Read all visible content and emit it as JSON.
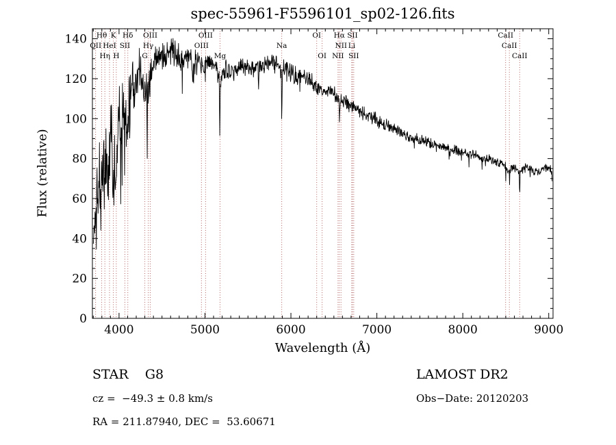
{
  "title": "spec-55961-F5596101_sp02-126.fits",
  "footer": {
    "class_label": "STAR    G8",
    "survey": "LAMOST DR2",
    "cz": "cz =  −49.3 ± 0.8 km/s",
    "obs_date": "Obs−Date: 20120203",
    "coords": "RA = 211.87940, DEC =  53.60671"
  },
  "chart_data": {
    "type": "line",
    "title": "spec-55961-F5596101_sp02-126.fits",
    "xlabel": "Wavelength (Å)",
    "ylabel": "Flux (relative)",
    "xlim": [
      3690,
      9050
    ],
    "ylim": [
      0,
      145
    ],
    "xticks": [
      4000,
      5000,
      6000,
      7000,
      8000,
      9000
    ],
    "yticks": [
      0,
      20,
      40,
      60,
      80,
      100,
      120,
      140
    ],
    "grid": false,
    "line_color": "#000000",
    "marker_color": "#b06060",
    "legend": "none",
    "envelope": [
      [
        3700,
        35
      ],
      [
        3712,
        58
      ],
      [
        3725,
        40
      ],
      [
        3740,
        68
      ],
      [
        3755,
        52
      ],
      [
        3770,
        75
      ],
      [
        3785,
        60
      ],
      [
        3800,
        72
      ],
      [
        3815,
        80
      ],
      [
        3835,
        68
      ],
      [
        3852,
        88
      ],
      [
        3870,
        75
      ],
      [
        3890,
        82
      ],
      [
        3905,
        95
      ],
      [
        3920,
        85
      ],
      [
        3934,
        60
      ],
      [
        3948,
        90
      ],
      [
        3968,
        64
      ],
      [
        3985,
        98
      ],
      [
        4000,
        106
      ],
      [
        4020,
        96
      ],
      [
        4045,
        108
      ],
      [
        4070,
        100
      ],
      [
        4102,
        98
      ],
      [
        4120,
        112
      ],
      [
        4150,
        118
      ],
      [
        4180,
        114
      ],
      [
        4210,
        122
      ],
      [
        4240,
        125
      ],
      [
        4270,
        117
      ],
      [
        4300,
        110
      ],
      [
        4322,
        118
      ],
      [
        4326,
        62
      ],
      [
        4332,
        116
      ],
      [
        4340,
        112
      ],
      [
        4363,
        120
      ],
      [
        4390,
        128
      ],
      [
        4430,
        131
      ],
      [
        4470,
        134
      ],
      [
        4510,
        133
      ],
      [
        4550,
        131
      ],
      [
        4590,
        136
      ],
      [
        4630,
        133
      ],
      [
        4670,
        132
      ],
      [
        4710,
        130
      ],
      [
        4750,
        128
      ],
      [
        4790,
        132
      ],
      [
        4830,
        129
      ],
      [
        4861,
        120
      ],
      [
        4890,
        129
      ],
      [
        4930,
        127
      ],
      [
        4970,
        128
      ],
      [
        5007,
        125
      ],
      [
        5040,
        127
      ],
      [
        5080,
        126
      ],
      [
        5120,
        127
      ],
      [
        5166,
        120
      ],
      [
        5172,
        88
      ],
      [
        5180,
        118
      ],
      [
        5220,
        124
      ],
      [
        5270,
        125
      ],
      [
        5320,
        124
      ],
      [
        5370,
        126
      ],
      [
        5420,
        125
      ],
      [
        5470,
        126
      ],
      [
        5520,
        125
      ],
      [
        5570,
        124
      ],
      [
        5620,
        125
      ],
      [
        5670,
        127
      ],
      [
        5720,
        128
      ],
      [
        5770,
        130
      ],
      [
        5820,
        127
      ],
      [
        5860,
        126
      ],
      [
        5888,
        125
      ],
      [
        5893,
        96
      ],
      [
        5900,
        124
      ],
      [
        5950,
        126
      ],
      [
        6000,
        123
      ],
      [
        6060,
        122
      ],
      [
        6120,
        121
      ],
      [
        6180,
        120
      ],
      [
        6240,
        118
      ],
      [
        6300,
        116
      ],
      [
        6363,
        113
      ],
      [
        6420,
        114
      ],
      [
        6480,
        112
      ],
      [
        6530,
        111
      ],
      [
        6560,
        110
      ],
      [
        6563,
        95
      ],
      [
        6570,
        109
      ],
      [
        6620,
        109
      ],
      [
        6680,
        107
      ],
      [
        6740,
        106
      ],
      [
        6800,
        104
      ],
      [
        6860,
        102
      ],
      [
        6920,
        101
      ],
      [
        6980,
        100
      ],
      [
        7040,
        98
      ],
      [
        7100,
        97
      ],
      [
        7160,
        96
      ],
      [
        7220,
        94
      ],
      [
        7280,
        93
      ],
      [
        7340,
        92
      ],
      [
        7400,
        91
      ],
      [
        7460,
        90
      ],
      [
        7520,
        89
      ],
      [
        7580,
        88
      ],
      [
        7640,
        87
      ],
      [
        7700,
        86
      ],
      [
        7760,
        86
      ],
      [
        7820,
        85
      ],
      [
        7880,
        84
      ],
      [
        7940,
        84
      ],
      [
        8000,
        83
      ],
      [
        8060,
        82
      ],
      [
        8120,
        82
      ],
      [
        8180,
        81
      ],
      [
        8240,
        80
      ],
      [
        8300,
        80
      ],
      [
        8360,
        79
      ],
      [
        8420,
        78
      ],
      [
        8470,
        77
      ],
      [
        8496,
        76
      ],
      [
        8498,
        63
      ],
      [
        8503,
        75
      ],
      [
        8540,
        75
      ],
      [
        8542,
        59
      ],
      [
        8547,
        74
      ],
      [
        8600,
        76
      ],
      [
        8658,
        74
      ],
      [
        8662,
        58
      ],
      [
        8667,
        73
      ],
      [
        8710,
        76
      ],
      [
        8760,
        75
      ],
      [
        8810,
        74
      ],
      [
        8860,
        73
      ],
      [
        8910,
        74
      ],
      [
        8960,
        76
      ],
      [
        9010,
        75
      ],
      [
        9040,
        73
      ]
    ],
    "noise_amp": [
      [
        3700,
        26
      ],
      [
        3800,
        26
      ],
      [
        3900,
        22
      ],
      [
        4000,
        18
      ],
      [
        4150,
        15
      ],
      [
        4300,
        13
      ],
      [
        4500,
        10
      ],
      [
        4800,
        8
      ],
      [
        5200,
        6.5
      ],
      [
        5800,
        6
      ],
      [
        6300,
        5
      ],
      [
        7000,
        4
      ],
      [
        7600,
        3.5
      ],
      [
        8200,
        3
      ],
      [
        9050,
        3
      ]
    ],
    "line_markers": [
      {
        "label": "Hθ",
        "wavelength": 3798,
        "row": 1
      },
      {
        "label": "K",
        "wavelength": 3934,
        "row": 1
      },
      {
        "label": "Hδ",
        "wavelength": 4102,
        "row": 1
      },
      {
        "label": "OIII",
        "wavelength": 4363,
        "row": 1
      },
      {
        "label": "OIII",
        "wavelength": 5007,
        "row": 1
      },
      {
        "label": "OI",
        "wavelength": 6300,
        "row": 1
      },
      {
        "label": "Hα",
        "wavelength": 6563,
        "row": 1
      },
      {
        "label": "SII",
        "wavelength": 6716,
        "row": 1
      },
      {
        "label": "CaII",
        "wavelength": 8498,
        "row": 1
      },
      {
        "label": "OII",
        "wavelength": 3727,
        "row": 2
      },
      {
        "label": "HeI",
        "wavelength": 3889,
        "row": 2
      },
      {
        "label": "SII",
        "wavelength": 4068,
        "row": 2
      },
      {
        "label": "Hγ",
        "wavelength": 4340,
        "row": 2
      },
      {
        "label": "OIII",
        "wavelength": 4959,
        "row": 2
      },
      {
        "label": "Na",
        "wavelength": 5893,
        "row": 2
      },
      {
        "label": "NII",
        "wavelength": 6583,
        "row": 2
      },
      {
        "label": "Li",
        "wavelength": 6708,
        "row": 2
      },
      {
        "label": "CaII",
        "wavelength": 8542,
        "row": 2
      },
      {
        "label": "Hη",
        "wavelength": 3835,
        "row": 3
      },
      {
        "label": "H",
        "wavelength": 3968,
        "row": 3
      },
      {
        "label": "G",
        "wavelength": 4300,
        "row": 3
      },
      {
        "label": "Mg",
        "wavelength": 5175,
        "row": 3
      },
      {
        "label": "OI",
        "wavelength": 6363,
        "row": 3
      },
      {
        "label": "NII",
        "wavelength": 6548,
        "row": 3
      },
      {
        "label": "SII",
        "wavelength": 6731,
        "row": 3
      },
      {
        "label": "CaII",
        "wavelength": 8662,
        "row": 3
      }
    ]
  }
}
